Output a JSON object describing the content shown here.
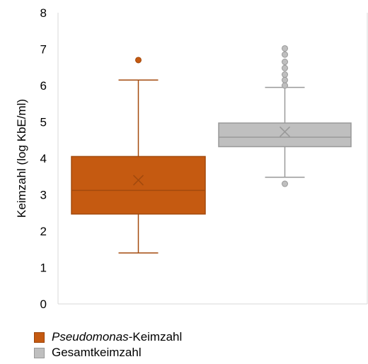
{
  "chart_data": {
    "type": "boxplot",
    "ylabel": "Keimzahl (log KbE/ml)",
    "ylim": [
      0,
      8
    ],
    "yticks": [
      "0",
      "1",
      "2",
      "3",
      "4",
      "5",
      "6",
      "7",
      "8"
    ],
    "grid": "vertical plot-area border only",
    "legend_position": "bottom-left",
    "series": [
      {
        "name_italic": "Pseudomonas",
        "name_suffix": "-Keimzahl",
        "color": "#c55a11",
        "min": 1.4,
        "q1": 2.47,
        "median": 3.12,
        "q3": 4.05,
        "max": 6.15,
        "mean": 3.4,
        "outliers": [
          6.7
        ]
      },
      {
        "name_italic": "",
        "name_suffix": "Gesamtkeimzahl",
        "color": "#bfbfbf",
        "stroke": "#999999",
        "min": 3.48,
        "q1": 4.32,
        "median": 4.58,
        "q3": 4.97,
        "max": 5.95,
        "mean": 4.73,
        "outliers": [
          3.3,
          6.0,
          6.15,
          6.3,
          6.48,
          6.65,
          6.85,
          7.02
        ]
      }
    ]
  }
}
